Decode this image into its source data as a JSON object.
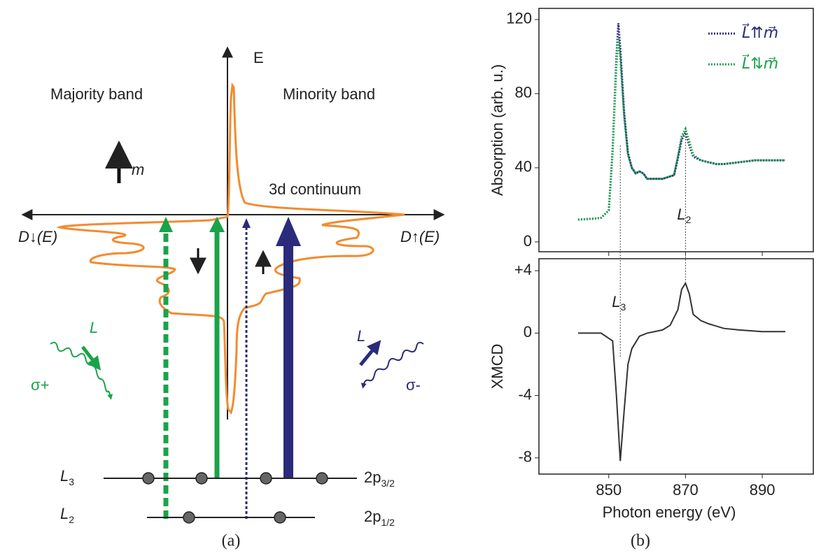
{
  "diagram": {
    "axis_label": "E",
    "majority": "Majority band",
    "minority": "Minority band",
    "moment": "m",
    "continuum": "3d continuum",
    "dos_down": "D↓(E)",
    "dos_up": "D↑(E)",
    "photon_left": {
      "label": "L",
      "polarization": "σ+"
    },
    "photon_right": {
      "label": "L",
      "polarization": "σ-"
    },
    "levels": [
      {
        "label": "L",
        "sub": "3",
        "orbital": "2p",
        "orbital_sub": "3/2"
      },
      {
        "label": "L",
        "sub": "2",
        "orbital": "2p",
        "orbital_sub": "1/2"
      }
    ],
    "caption": "(a)"
  },
  "chart_data": [
    {
      "type": "line",
      "ylabel": "Absorption (arb. u.)",
      "xlim": [
        831.8,
        903.3
      ],
      "ylim": [
        -5.3,
        126
      ],
      "yticks": [
        0,
        40,
        80,
        120
      ],
      "legend": "upper right",
      "series": [
        {
          "name": "L⃗⇈m⃗",
          "color": "#2b2b7c",
          "x": [
            842,
            846,
            848,
            850,
            851,
            852,
            852.5,
            853,
            854,
            855,
            856,
            857,
            858,
            859,
            860,
            864,
            867,
            868,
            869,
            870,
            871,
            872,
            874,
            876,
            878,
            880,
            884,
            888,
            892,
            896
          ],
          "values": [
            12,
            12.5,
            13,
            17,
            50,
            100,
            118,
            105,
            70,
            48,
            40,
            37,
            38,
            37,
            34,
            34,
            36,
            45,
            55,
            59,
            52,
            46,
            44,
            43,
            42,
            42,
            43,
            44,
            44,
            44
          ]
        },
        {
          "name": "L⃗⇅m⃗",
          "color": "#1aa34a",
          "x": [
            842,
            846,
            848,
            850,
            851,
            852,
            852.5,
            853,
            854,
            855,
            856,
            857,
            858,
            859,
            860,
            864,
            867,
            868,
            869,
            870,
            871,
            872,
            874,
            876,
            878,
            880,
            884,
            888,
            892,
            896
          ],
          "values": [
            12,
            12.5,
            13,
            17,
            48,
            95,
            110,
            100,
            68,
            47,
            40,
            37,
            38,
            37,
            34,
            34,
            36,
            46,
            57,
            61,
            54,
            47,
            44,
            43,
            42,
            42,
            43,
            44,
            44,
            44
          ]
        }
      ],
      "annotations": [
        {
          "text": "L",
          "sub": "2",
          "x": 870
        }
      ]
    },
    {
      "type": "line",
      "xlabel": "Photon energy (eV)",
      "ylabel": "XMCD",
      "xlim": [
        831.8,
        903.3
      ],
      "ylim": [
        -9.04,
        4.77
      ],
      "xticks": [
        850,
        870,
        890
      ],
      "yticks": [
        {
          "value": 4,
          "label": "+4"
        },
        0,
        -4,
        -8
      ],
      "series": [
        {
          "color": "#333333",
          "x": [
            842,
            848,
            851,
            852,
            853,
            854,
            855,
            856,
            858,
            860,
            864,
            866,
            868,
            869,
            870,
            871,
            872,
            874,
            876,
            880,
            884,
            890,
            896
          ],
          "values": [
            0,
            0,
            -0.5,
            -4,
            -8.2,
            -5,
            -2,
            -1,
            -0.2,
            0,
            0.2,
            0.5,
            1.5,
            2.8,
            3.2,
            2.5,
            1.2,
            0.8,
            0.6,
            0.3,
            0.2,
            0.1,
            0.1
          ]
        }
      ],
      "annotations": [
        {
          "text": "L",
          "sub": "3",
          "x": 853
        }
      ],
      "caption": "(b)"
    }
  ]
}
